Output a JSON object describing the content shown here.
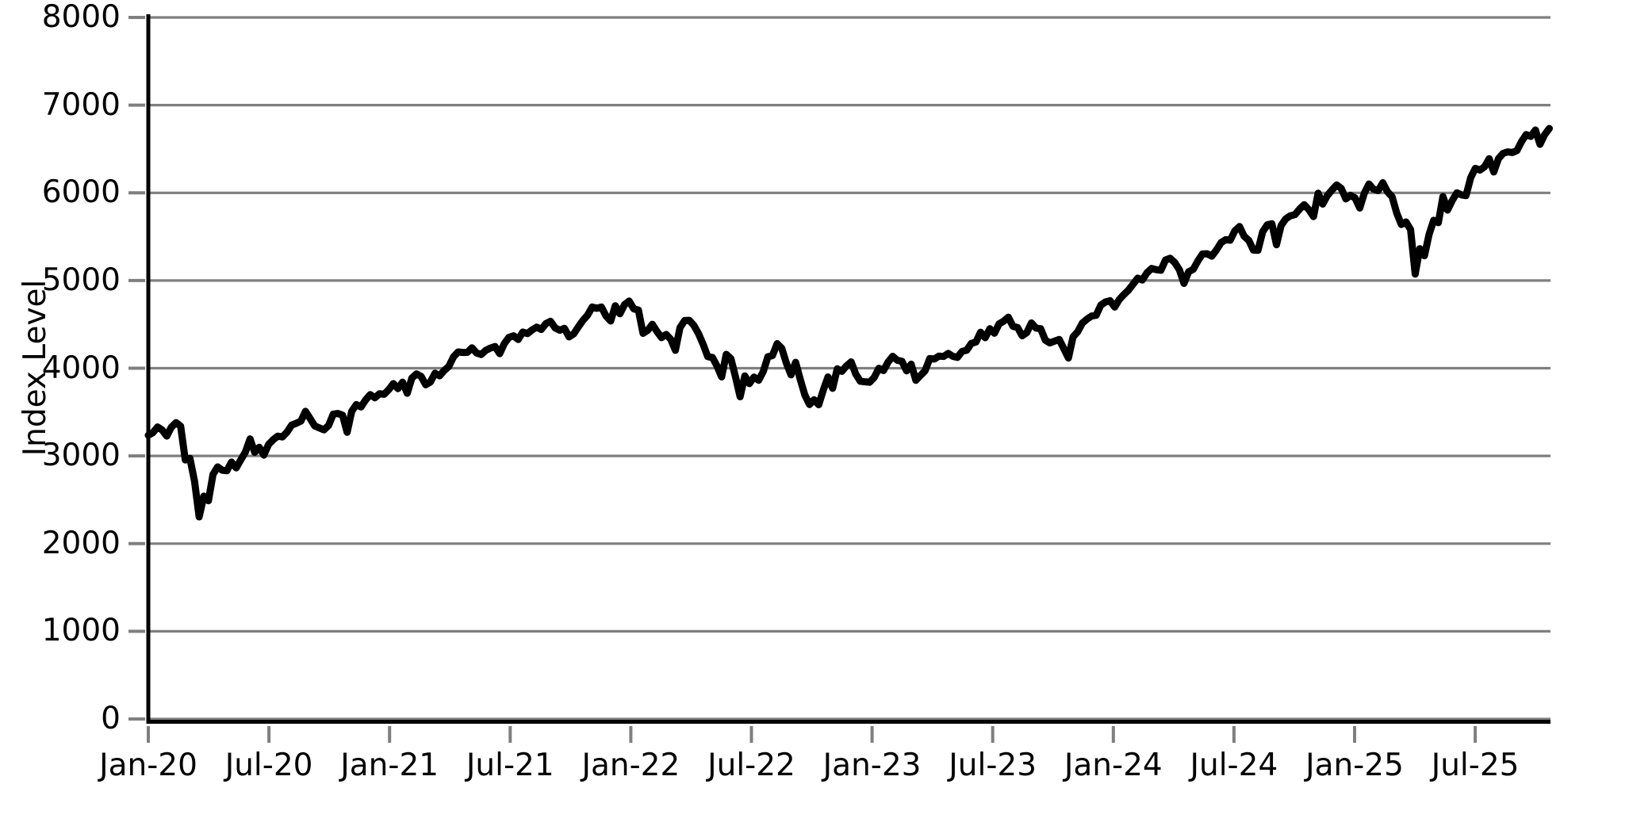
{
  "chart_data": {
    "type": "line",
    "title": "",
    "xlabel": "",
    "ylabel": "Index Level",
    "ylim": [
      0,
      8000
    ],
    "yticks": [
      0,
      1000,
      2000,
      3000,
      4000,
      5000,
      6000,
      7000,
      8000
    ],
    "xticks": [
      {
        "label": "Jan-20",
        "month": 0
      },
      {
        "label": "Jul-20",
        "month": 6
      },
      {
        "label": "Jan-21",
        "month": 12
      },
      {
        "label": "Jul-21",
        "month": 18
      },
      {
        "label": "Jan-22",
        "month": 24
      },
      {
        "label": "Jul-22",
        "month": 30
      },
      {
        "label": "Jan-23",
        "month": 36
      },
      {
        "label": "Jul-23",
        "month": 42
      },
      {
        "label": "Jan-24",
        "month": 48
      },
      {
        "label": "Jul-24",
        "month": 54
      },
      {
        "label": "Jan-25",
        "month": 60
      },
      {
        "label": "Jul-25",
        "month": 66
      }
    ],
    "grid": "horizontal",
    "legend_position": "none",
    "colors": {
      "line": "#000000",
      "grid": "#7f7f7f",
      "tick": "#7f7f7f",
      "spine": "#000000",
      "text": "#000000",
      "background": "#ffffff"
    },
    "series": [
      {
        "name": "Index Level",
        "cadence": "weekly",
        "start_label": "Jan-20",
        "end_label": "Oct-25",
        "values": [
          3235,
          3265,
          3330,
          3295,
          3226,
          3328,
          3380,
          3338,
          2954,
          2972,
          2711,
          2305,
          2541,
          2489,
          2790,
          2875,
          2837,
          2831,
          2930,
          2864,
          2955,
          3044,
          3194,
          3041,
          3098,
          3009,
          3130,
          3185,
          3225,
          3216,
          3271,
          3351,
          3373,
          3397,
          3508,
          3427,
          3341,
          3319,
          3298,
          3348,
          3477,
          3484,
          3465,
          3270,
          3509,
          3585,
          3558,
          3638,
          3699,
          3663,
          3709,
          3703,
          3756,
          3825,
          3768,
          3841,
          3714,
          3887,
          3935,
          3907,
          3811,
          3842,
          3943,
          3913,
          3975,
          4020,
          4129,
          4185,
          4180,
          4181,
          4233,
          4174,
          4156,
          4204,
          4230,
          4247,
          4166,
          4281,
          4352,
          4370,
          4327,
          4412,
          4395,
          4437,
          4468,
          4442,
          4509,
          4535,
          4459,
          4433,
          4455,
          4357,
          4391,
          4471,
          4545,
          4605,
          4698,
          4683,
          4698,
          4595,
          4538,
          4712,
          4621,
          4726,
          4766,
          4677,
          4663,
          4398,
          4432,
          4501,
          4419,
          4349,
          4385,
          4329,
          4204,
          4463,
          4543,
          4546,
          4488,
          4393,
          4272,
          4132,
          4123,
          4024,
          3901,
          4158,
          4109,
          3901,
          3675,
          3912,
          3825,
          3899,
          3863,
          3962,
          4130,
          4145,
          4280,
          4228,
          4058,
          3924,
          4067,
          3873,
          3693,
          3586,
          3640,
          3583,
          3753,
          3901,
          3771,
          3993,
          3965,
          4026,
          4072,
          3934,
          3852,
          3845,
          3840,
          3895,
          3999,
          3973,
          4071,
          4136,
          4090,
          4079,
          3970,
          4046,
          3862,
          3917,
          3971,
          4109,
          4105,
          4138,
          4134,
          4169,
          4136,
          4124,
          4192,
          4205,
          4282,
          4299,
          4410,
          4348,
          4450,
          4399,
          4505,
          4536,
          4582,
          4478,
          4464,
          4370,
          4406,
          4516,
          4457,
          4450,
          4320,
          4288,
          4309,
          4328,
          4224,
          4117,
          4358,
          4415,
          4514,
          4559,
          4595,
          4604,
          4719,
          4755,
          4770,
          4697,
          4784,
          4840,
          4891,
          4959,
          5027,
          5006,
          5089,
          5137,
          5124,
          5117,
          5234,
          5254,
          5204,
          5123,
          4967,
          5100,
          5128,
          5223,
          5303,
          5305,
          5278,
          5347,
          5432,
          5465,
          5460,
          5567,
          5615,
          5505,
          5459,
          5347,
          5344,
          5554,
          5635,
          5648,
          5408,
          5626,
          5703,
          5738,
          5751,
          5815,
          5865,
          5808,
          5729,
          5996,
          5871,
          5969,
          6032,
          6090,
          6051,
          5931,
          5971,
          5942,
          5827,
          5997,
          6101,
          6041,
          6026,
          6115,
          6013,
          5955,
          5770,
          5639,
          5668,
          5581,
          5074,
          5363,
          5283,
          5525,
          5687,
          5660,
          5958,
          5803,
          5912,
          6000,
          5977,
          5968,
          6173,
          6279,
          6260,
          6297,
          6389,
          6238,
          6389,
          6450,
          6467,
          6460,
          6481,
          6584,
          6664,
          6644,
          6716,
          6553,
          6664,
          6734
        ]
      }
    ]
  }
}
